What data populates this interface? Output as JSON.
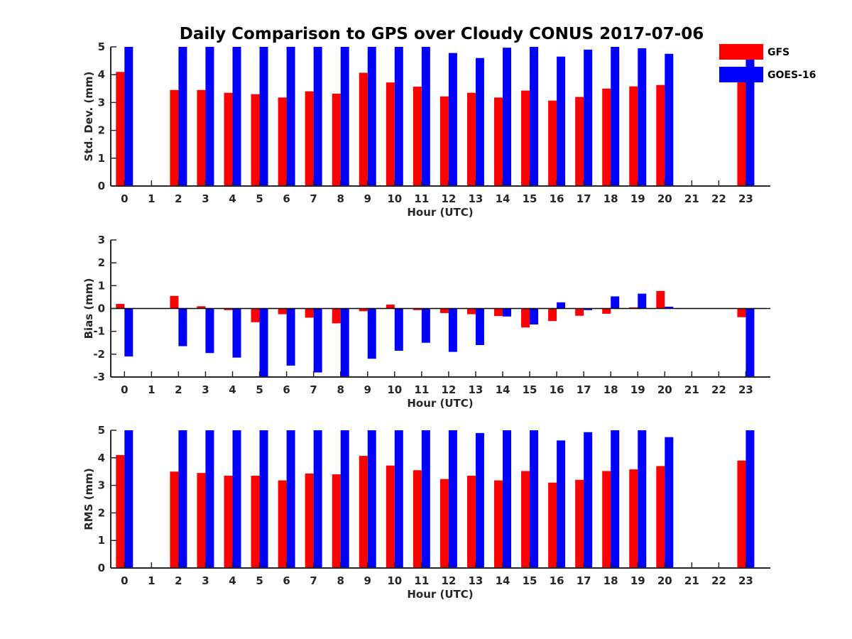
{
  "title": "Daily Comparison to GPS over Cloudy CONUS 2017-07-06",
  "legend": {
    "placement": "top-right",
    "items": [
      {
        "name": "GFS",
        "color": "#ff0000"
      },
      {
        "name": "GOES-16",
        "color": "#0000ff"
      }
    ]
  },
  "colors": {
    "gfs": "#ff0000",
    "goes": "#0000ff",
    "axis": "#262626"
  },
  "chart_data": [
    {
      "type": "bar",
      "xlabel": "Hour (UTC)",
      "ylabel": "Std. Dev. (mm)",
      "ylim": [
        0,
        5
      ],
      "yticks": [
        0,
        1,
        2,
        3,
        4,
        5
      ],
      "categories": [
        "0",
        "1",
        "2",
        "3",
        "4",
        "5",
        "6",
        "7",
        "8",
        "9",
        "10",
        "11",
        "12",
        "13",
        "14",
        "15",
        "16",
        "17",
        "18",
        "19",
        "20",
        "21",
        "22",
        "23"
      ],
      "zero_line": false,
      "series": [
        {
          "name": "GFS",
          "values": [
            4.1,
            null,
            3.45,
            3.45,
            3.35,
            3.3,
            3.18,
            3.4,
            3.32,
            4.07,
            3.72,
            3.57,
            3.22,
            3.35,
            3.18,
            3.43,
            3.07,
            3.2,
            3.5,
            3.58,
            3.63,
            null,
            null,
            3.9
          ]
        },
        {
          "name": "GOES-16",
          "values": [
            5.0,
            null,
            5.0,
            5.0,
            5.0,
            5.0,
            5.0,
            5.0,
            5.0,
            5.0,
            5.0,
            5.0,
            4.78,
            4.6,
            4.97,
            5.0,
            4.65,
            4.9,
            5.0,
            4.95,
            4.75,
            null,
            null,
            5.0
          ]
        }
      ]
    },
    {
      "type": "bar",
      "xlabel": "Hour (UTC)",
      "ylabel": "Bias (mm)",
      "ylim": [
        -3,
        3
      ],
      "yticks": [
        -3,
        -2,
        -1,
        0,
        1,
        2,
        3
      ],
      "categories": [
        "0",
        "1",
        "2",
        "3",
        "4",
        "5",
        "6",
        "7",
        "8",
        "9",
        "10",
        "11",
        "12",
        "13",
        "14",
        "15",
        "16",
        "17",
        "18",
        "19",
        "20",
        "21",
        "22",
        "23"
      ],
      "zero_line": true,
      "series": [
        {
          "name": "GFS",
          "values": [
            0.2,
            null,
            0.55,
            0.1,
            -0.07,
            -0.6,
            -0.25,
            -0.4,
            -0.65,
            -0.12,
            0.17,
            -0.07,
            -0.2,
            -0.25,
            -0.33,
            -0.83,
            -0.55,
            -0.32,
            -0.23,
            0.05,
            0.77,
            null,
            null,
            -0.38
          ]
        },
        {
          "name": "GOES-16",
          "values": [
            -2.1,
            null,
            -1.65,
            -1.95,
            -2.15,
            -3.0,
            -2.5,
            -2.8,
            -3.0,
            -2.2,
            -1.85,
            -1.5,
            -1.9,
            -1.6,
            -0.35,
            -0.7,
            0.27,
            -0.07,
            0.53,
            0.65,
            0.08,
            null,
            null,
            -3.0
          ]
        }
      ]
    },
    {
      "type": "bar",
      "xlabel": "Hour (UTC)",
      "ylabel": "RMS (mm)",
      "ylim": [
        0,
        5
      ],
      "yticks": [
        0,
        1,
        2,
        3,
        4,
        5
      ],
      "categories": [
        "0",
        "1",
        "2",
        "3",
        "4",
        "5",
        "6",
        "7",
        "8",
        "9",
        "10",
        "11",
        "12",
        "13",
        "14",
        "15",
        "16",
        "17",
        "18",
        "19",
        "20",
        "21",
        "22",
        "23"
      ],
      "zero_line": false,
      "series": [
        {
          "name": "GFS",
          "values": [
            4.1,
            null,
            3.5,
            3.45,
            3.35,
            3.35,
            3.18,
            3.43,
            3.4,
            4.07,
            3.72,
            3.55,
            3.23,
            3.35,
            3.18,
            3.52,
            3.1,
            3.2,
            3.52,
            3.58,
            3.7,
            null,
            null,
            3.9
          ]
        },
        {
          "name": "GOES-16",
          "values": [
            5.0,
            null,
            5.0,
            5.0,
            5.0,
            5.0,
            5.0,
            5.0,
            5.0,
            5.0,
            5.0,
            5.0,
            5.0,
            4.9,
            5.0,
            5.0,
            4.63,
            4.93,
            5.0,
            5.0,
            4.75,
            null,
            null,
            5.0
          ]
        }
      ]
    }
  ]
}
